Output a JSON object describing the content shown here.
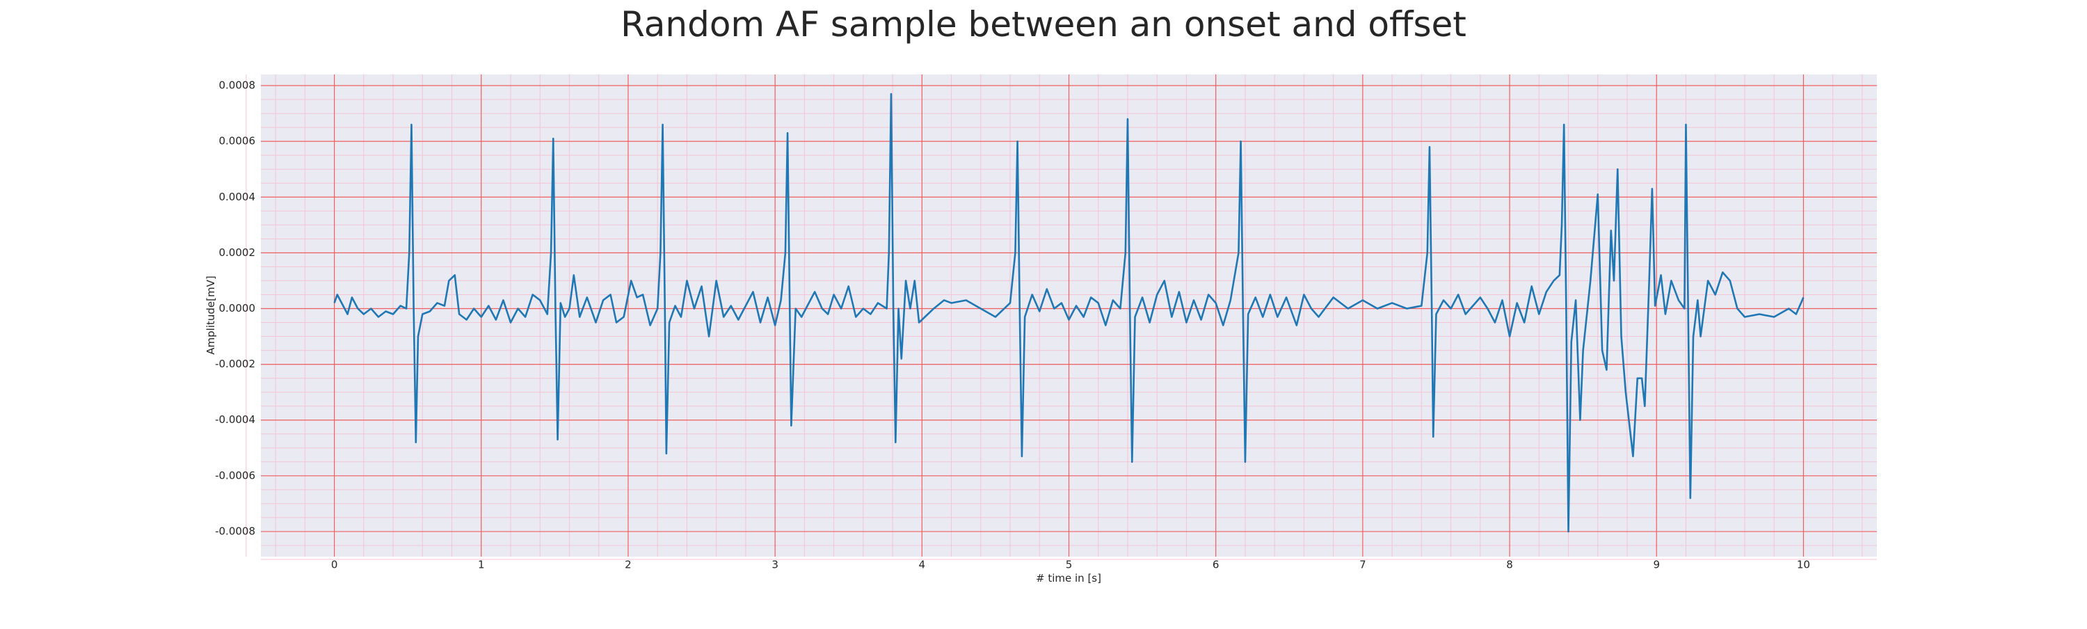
{
  "chart_data": {
    "type": "line",
    "title": "Random AF sample between an onset and offset",
    "x_label": "# time in [s]",
    "y_label": "Amplitude[mV]",
    "xlim": [
      -0.5,
      10.5
    ],
    "ylim": [
      -0.00089,
      0.00084
    ],
    "xticks": [
      0,
      1,
      2,
      3,
      4,
      5,
      6,
      7,
      8,
      9,
      10
    ],
    "yticks": [
      {
        "value": 0.0008,
        "label": "0.0008"
      },
      {
        "value": 0.0006,
        "label": "0.0006"
      },
      {
        "value": 0.0004,
        "label": "0.0004"
      },
      {
        "value": 0.0002,
        "label": "0.0002"
      },
      {
        "value": 0,
        "label": "0.0000"
      },
      {
        "value": -0.0002,
        "label": "-0.0002"
      },
      {
        "value": -0.0004,
        "label": "-0.0004"
      },
      {
        "value": -0.0006,
        "label": "-0.0006"
      },
      {
        "value": -0.0008,
        "label": "-0.0008"
      }
    ],
    "grid": true,
    "grid_color": "#f06060",
    "minor_grid": true,
    "minor_grid_color": "#f4c4d4",
    "background": "#eaeaf2",
    "x": [
      0,
      0.02,
      0.06,
      0.09,
      0.12,
      0.16,
      0.2,
      0.25,
      0.3,
      0.35,
      0.4,
      0.45,
      0.49,
      0.51,
      0.525,
      0.54,
      0.555,
      0.57,
      0.6,
      0.65,
      0.7,
      0.75,
      0.78,
      0.82,
      0.85,
      0.9,
      0.95,
      1.0,
      1.05,
      1.1,
      1.15,
      1.2,
      1.25,
      1.3,
      1.35,
      1.4,
      1.45,
      1.475,
      1.49,
      1.505,
      1.52,
      1.54,
      1.57,
      1.6,
      1.63,
      1.67,
      1.72,
      1.78,
      1.83,
      1.88,
      1.92,
      1.97,
      2.02,
      2.06,
      2.1,
      2.15,
      2.2,
      2.22,
      2.235,
      2.25,
      2.26,
      2.28,
      2.32,
      2.36,
      2.4,
      2.45,
      2.5,
      2.55,
      2.6,
      2.65,
      2.7,
      2.75,
      2.8,
      2.85,
      2.9,
      2.95,
      3.0,
      3.04,
      3.07,
      3.085,
      3.1,
      3.11,
      3.14,
      3.18,
      3.22,
      3.27,
      3.32,
      3.36,
      3.4,
      3.45,
      3.5,
      3.55,
      3.6,
      3.65,
      3.7,
      3.76,
      3.775,
      3.79,
      3.805,
      3.82,
      3.84,
      3.86,
      3.89,
      3.92,
      3.95,
      3.98,
      4.02,
      4.08,
      4.15,
      4.2,
      4.3,
      4.4,
      4.5,
      4.6,
      4.635,
      4.65,
      4.665,
      4.68,
      4.7,
      4.75,
      4.8,
      4.85,
      4.9,
      4.95,
      5.0,
      5.05,
      5.1,
      5.15,
      5.2,
      5.25,
      5.3,
      5.35,
      5.385,
      5.4,
      5.415,
      5.43,
      5.45,
      5.5,
      5.55,
      5.6,
      5.65,
      5.7,
      5.75,
      5.8,
      5.85,
      5.9,
      5.95,
      6.0,
      6.05,
      6.1,
      6.155,
      6.17,
      6.185,
      6.2,
      6.22,
      6.27,
      6.32,
      6.37,
      6.42,
      6.48,
      6.55,
      6.6,
      6.65,
      6.7,
      6.8,
      6.9,
      7.0,
      7.1,
      7.2,
      7.3,
      7.4,
      7.44,
      7.455,
      7.47,
      7.48,
      7.5,
      7.55,
      7.6,
      7.65,
      7.7,
      7.8,
      7.85,
      7.9,
      7.95,
      8.0,
      8.05,
      8.1,
      8.15,
      8.2,
      8.25,
      8.3,
      8.34,
      8.355,
      8.37,
      8.385,
      8.4,
      8.42,
      8.45,
      8.48,
      8.5,
      8.55,
      8.6,
      8.63,
      8.66,
      8.69,
      8.71,
      8.735,
      8.76,
      8.79,
      8.84,
      8.87,
      8.9,
      8.92,
      8.95,
      8.97,
      8.99,
      9.03,
      9.06,
      9.1,
      9.15,
      9.19,
      9.2,
      9.215,
      9.23,
      9.25,
      9.28,
      9.3,
      9.35,
      9.4,
      9.45,
      9.5,
      9.55,
      9.6,
      9.7,
      9.8,
      9.9,
      9.95,
      10.0
    ],
    "series": [
      {
        "color": "#1f77b4",
        "values": [
          2e-05,
          5e-05,
          1e-05,
          -2e-05,
          4e-05,
          0,
          -2e-05,
          0,
          -3e-05,
          -1e-05,
          -2e-05,
          1e-05,
          0,
          0.0002,
          0.00066,
          0,
          -0.00048,
          -0.0001,
          -2e-05,
          -1e-05,
          2e-05,
          1e-05,
          0.0001,
          0.00012,
          -2e-05,
          -4e-05,
          0,
          -3e-05,
          1e-05,
          -4e-05,
          3e-05,
          -5e-05,
          0,
          -3e-05,
          5e-05,
          3e-05,
          -2e-05,
          0.0002,
          0.00061,
          0,
          -0.00047,
          2e-05,
          -3e-05,
          0,
          0.00012,
          -3e-05,
          4e-05,
          -5e-05,
          3e-05,
          5e-05,
          -5e-05,
          -3e-05,
          0.0001,
          4e-05,
          5e-05,
          -6e-05,
          0,
          0.0002,
          0.00066,
          0,
          -0.00052,
          -5e-05,
          1e-05,
          -3e-05,
          0.0001,
          0,
          8e-05,
          -0.0001,
          0.0001,
          -3e-05,
          1e-05,
          -4e-05,
          1e-05,
          6e-05,
          -5e-05,
          4e-05,
          -6e-05,
          3e-05,
          0.0002,
          0.00063,
          0,
          -0.00042,
          0,
          -3e-05,
          1e-05,
          6e-05,
          0,
          -2e-05,
          5e-05,
          0,
          8e-05,
          -3e-05,
          0,
          -2e-05,
          2e-05,
          0,
          0.0002,
          0.00077,
          0,
          -0.00048,
          0,
          -0.00018,
          0.0001,
          0,
          0.0001,
          -5e-05,
          -3e-05,
          0,
          3e-05,
          2e-05,
          3e-05,
          0,
          -3e-05,
          2e-05,
          0.0002,
          0.0006,
          0,
          -0.00053,
          -3e-05,
          5e-05,
          -1e-05,
          7e-05,
          0,
          2e-05,
          -4e-05,
          1e-05,
          -3e-05,
          4e-05,
          2e-05,
          -6e-05,
          3e-05,
          0,
          0.0002,
          0.00068,
          0,
          -0.00055,
          -3e-05,
          4e-05,
          -5e-05,
          5e-05,
          0.0001,
          -3e-05,
          6e-05,
          -5e-05,
          3e-05,
          -4e-05,
          5e-05,
          2e-05,
          -6e-05,
          3e-05,
          0.0002,
          0.0006,
          0,
          -0.00055,
          -2e-05,
          4e-05,
          -3e-05,
          5e-05,
          -3e-05,
          4e-05,
          -6e-05,
          5e-05,
          0,
          -3e-05,
          4e-05,
          0,
          3e-05,
          0,
          2e-05,
          0,
          1e-05,
          0.0002,
          0.00058,
          0,
          -0.00046,
          -2e-05,
          3e-05,
          0,
          5e-05,
          -2e-05,
          4e-05,
          0,
          -5e-05,
          3e-05,
          -0.0001,
          2e-05,
          -5e-05,
          8e-05,
          -2e-05,
          6e-05,
          0.0001,
          0.00012,
          0.0003,
          0.00066,
          0,
          -0.0008,
          -0.00012,
          3e-05,
          -0.0004,
          -0.00015,
          0.0001,
          0.00041,
          -0.00015,
          -0.00022,
          0.00028,
          0.0001,
          0.0005,
          -0.0001,
          -0.0003,
          -0.00053,
          -0.00025,
          -0.00025,
          -0.00035,
          0.0001,
          0.00043,
          1e-05,
          0.00012,
          -2e-05,
          0.0001,
          3e-05,
          0,
          0.00066,
          0,
          -0.00068,
          -0.0001,
          3e-05,
          -0.0001,
          0.0001,
          5e-05,
          0.00013,
          0.0001,
          0,
          -3e-05,
          -2e-05,
          -3e-05,
          0,
          -2e-05,
          4e-05
        ]
      }
    ]
  }
}
